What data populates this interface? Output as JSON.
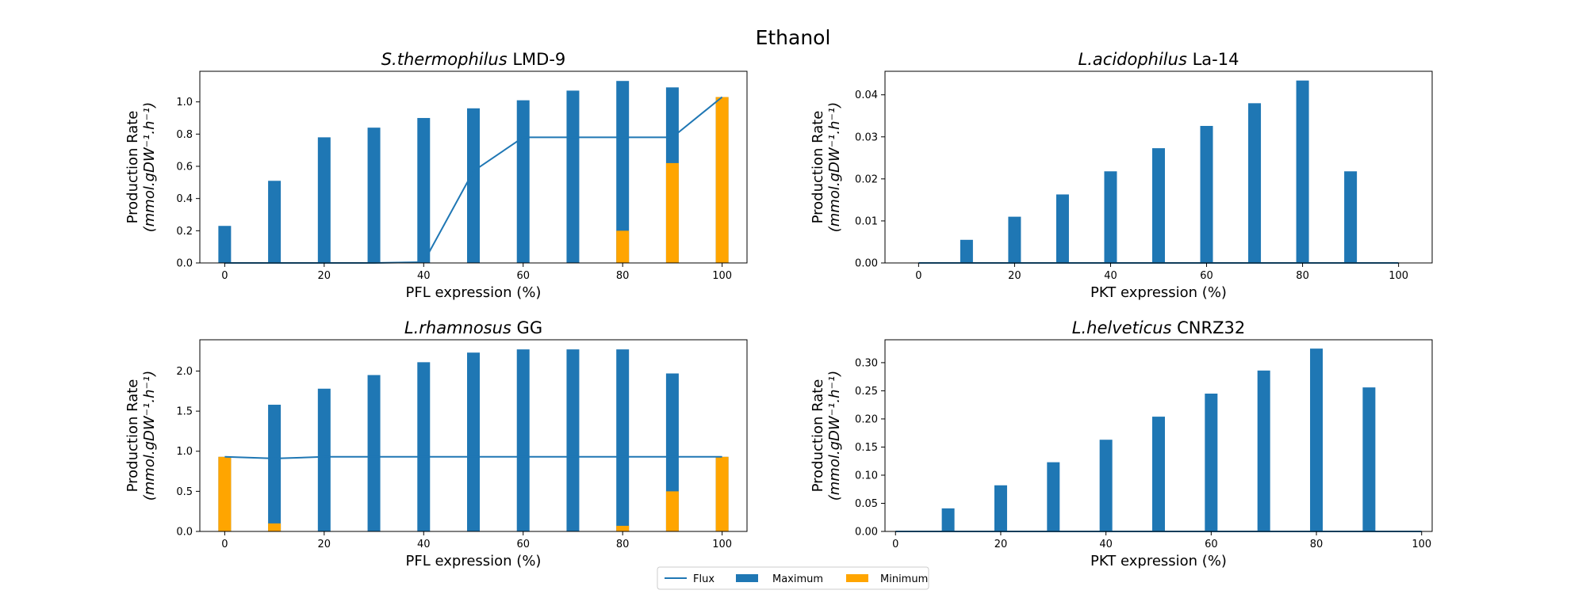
{
  "figure": {
    "title": "Ethanol",
    "legend": {
      "placement": "bottom-center",
      "items": [
        {
          "label": "Flux",
          "kind": "line",
          "color": "#1f77b4"
        },
        {
          "label": "Maximum",
          "kind": "patch",
          "color": "#1f77b4"
        },
        {
          "label": "Minimum",
          "kind": "patch",
          "color": "#ffa500"
        }
      ]
    }
  },
  "colors": {
    "maximum": "#1f77b4",
    "minimum": "#ffa500",
    "flux": "#1f77b4"
  },
  "chart_data": [
    {
      "type": "bar",
      "title_italic": "S.thermophilus",
      "title_rest": " LMD-9",
      "xlabel": "PFL expression (%)",
      "ylabel_line1": "Production Rate",
      "ylabel_line2": "(mmol.gDW⁻¹.h⁻¹)",
      "x": [
        0,
        10,
        20,
        30,
        40,
        50,
        60,
        70,
        80,
        90,
        100
      ],
      "xlim": [
        -5,
        105
      ],
      "ylim": [
        0,
        1.19
      ],
      "xticks": [
        0,
        20,
        40,
        60,
        80,
        100
      ],
      "yticks": [
        0,
        0.2,
        0.4,
        0.6,
        0.8,
        1.0
      ],
      "ytick_labels": [
        "0.0",
        "0.2",
        "0.4",
        "0.6",
        "0.8",
        "1.0"
      ],
      "grid": false,
      "series": [
        {
          "name": "Maximum",
          "values": [
            0.23,
            0.51,
            0.78,
            0.84,
            0.9,
            0.96,
            1.01,
            1.07,
            1.13,
            1.09,
            1.03
          ]
        },
        {
          "name": "Minimum",
          "values": [
            0,
            0,
            0,
            0,
            0,
            0,
            0,
            0,
            0.2,
            0.62,
            1.03
          ]
        },
        {
          "name": "Flux",
          "values": [
            0,
            0,
            0,
            0,
            0.005,
            0.57,
            0.78,
            0.78,
            0.78,
            0.78,
            1.03
          ]
        }
      ]
    },
    {
      "type": "bar",
      "title_italic": "L.acidophilus",
      "title_rest": " La-14",
      "xlabel": "PKT expression (%)",
      "ylabel_line1": "Production Rate",
      "ylabel_line2": "(mmol.gDW⁻¹.h⁻¹)",
      "x": [
        0,
        10,
        20,
        30,
        40,
        50,
        60,
        70,
        80,
        90,
        100
      ],
      "xlim": [
        -7,
        107
      ],
      "ylim": [
        0,
        0.0456
      ],
      "xticks": [
        0,
        20,
        40,
        60,
        80,
        100
      ],
      "yticks": [
        0,
        0.01,
        0.02,
        0.03,
        0.04
      ],
      "ytick_labels": [
        "0.00",
        "0.01",
        "0.02",
        "0.03",
        "0.04"
      ],
      "grid": false,
      "series": [
        {
          "name": "Maximum",
          "values": [
            0,
            0.0055,
            0.011,
            0.0163,
            0.0218,
            0.0273,
            0.0326,
            0.038,
            0.0434,
            0.0218,
            0
          ]
        },
        {
          "name": "Minimum",
          "values": [
            0,
            0,
            0,
            0,
            0,
            0,
            0,
            0,
            0,
            0,
            0
          ]
        },
        {
          "name": "Flux",
          "values": [
            0,
            0,
            0,
            0,
            0,
            0,
            0,
            0,
            0,
            0,
            0
          ]
        }
      ]
    },
    {
      "type": "bar",
      "title_italic": "L.rhamnosus",
      "title_rest": " GG",
      "xlabel": "PFL expression (%)",
      "ylabel_line1": "Production Rate",
      "ylabel_line2": "(mmol.gDW⁻¹.h⁻¹)",
      "x": [
        0,
        10,
        20,
        30,
        40,
        50,
        60,
        70,
        80,
        90,
        100
      ],
      "xlim": [
        -5,
        105
      ],
      "ylim": [
        0,
        2.39
      ],
      "xticks": [
        0,
        20,
        40,
        60,
        80,
        100
      ],
      "yticks": [
        0,
        0.5,
        1.0,
        1.5,
        2.0
      ],
      "ytick_labels": [
        "0.0",
        "0.5",
        "1.0",
        "1.5",
        "2.0"
      ],
      "grid": false,
      "series": [
        {
          "name": "Maximum",
          "values": [
            0.93,
            1.58,
            1.78,
            1.95,
            2.11,
            2.23,
            2.27,
            2.27,
            2.27,
            1.97,
            0.93
          ]
        },
        {
          "name": "Minimum",
          "values": [
            0.93,
            0.1,
            0,
            0,
            0,
            0,
            0,
            0,
            0.07,
            0.5,
            0.93
          ]
        },
        {
          "name": "Flux",
          "values": [
            0.93,
            0.91,
            0.93,
            0.93,
            0.93,
            0.93,
            0.93,
            0.93,
            0.93,
            0.93,
            0.93
          ]
        }
      ]
    },
    {
      "type": "bar",
      "title_italic": "L.helveticus",
      "title_rest": " CNRZ32",
      "xlabel": "PKT expression (%)",
      "ylabel_line1": "Production Rate",
      "ylabel_line2": "(mmol.gDW⁻¹.h⁻¹)",
      "x": [
        0,
        10,
        20,
        30,
        40,
        50,
        60,
        70,
        80,
        90,
        100
      ],
      "xlim": [
        -2,
        102
      ],
      "ylim": [
        0,
        0.3407
      ],
      "xticks": [
        0,
        20,
        40,
        60,
        80,
        100
      ],
      "yticks": [
        0,
        0.05,
        0.1,
        0.15,
        0.2,
        0.25,
        0.3
      ],
      "ytick_labels": [
        "0.00",
        "0.05",
        "0.10",
        "0.15",
        "0.20",
        "0.25",
        "0.30"
      ],
      "grid": false,
      "series": [
        {
          "name": "Maximum",
          "values": [
            0,
            0.041,
            0.082,
            0.123,
            0.163,
            0.204,
            0.245,
            0.286,
            0.325,
            0.256,
            0
          ]
        },
        {
          "name": "Minimum",
          "values": [
            0,
            0,
            0,
            0,
            0,
            0,
            0,
            0,
            0,
            0,
            0
          ]
        },
        {
          "name": "Flux",
          "values": [
            0,
            0,
            0,
            0,
            0,
            0,
            0,
            0,
            0,
            0,
            0
          ]
        }
      ]
    }
  ]
}
